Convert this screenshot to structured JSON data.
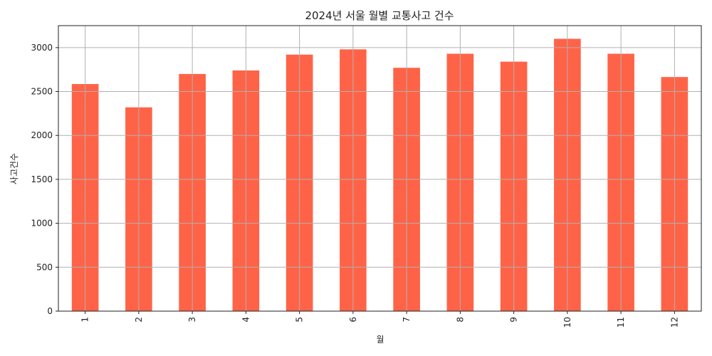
{
  "chart_data": {
    "type": "bar",
    "title": "2024년 서울 월별 교통사고 건수",
    "xlabel": "월",
    "ylabel": "사고건수",
    "categories": [
      "1",
      "2",
      "3",
      "4",
      "5",
      "6",
      "7",
      "8",
      "9",
      "10",
      "11",
      "12"
    ],
    "values": [
      2585,
      2320,
      2700,
      2740,
      2920,
      2980,
      2770,
      2930,
      2840,
      3100,
      2930,
      2665
    ],
    "ylim": [
      0,
      3250
    ],
    "yticks": [
      0,
      500,
      1000,
      1500,
      2000,
      2500,
      3000
    ],
    "grid": true,
    "bar_color": "#ff6347"
  }
}
